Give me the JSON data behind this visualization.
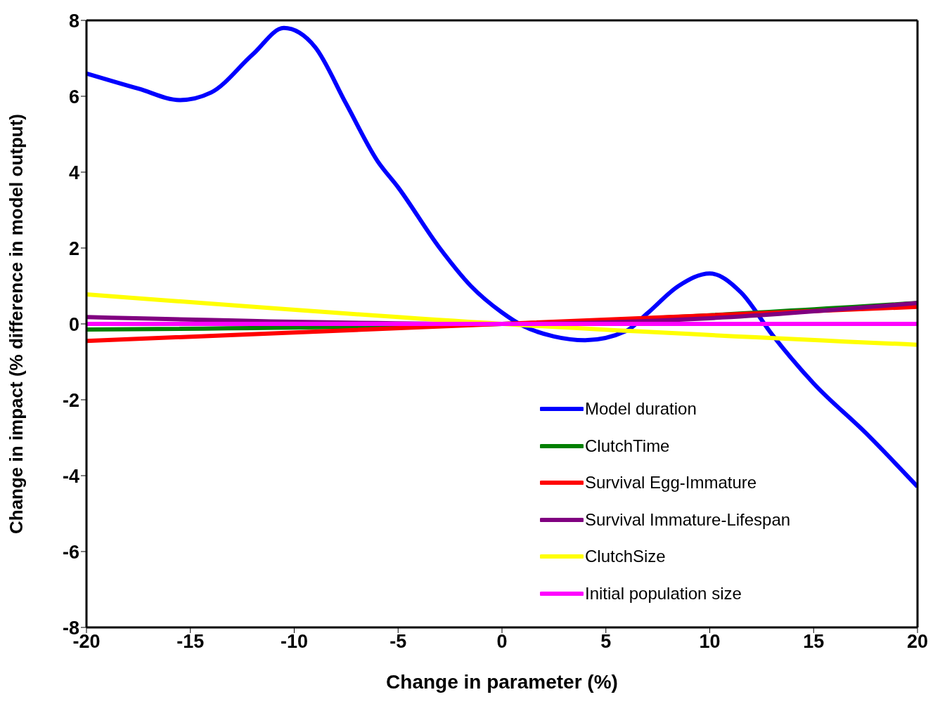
{
  "chart_data": {
    "type": "line",
    "xlabel": "Change in parameter (%)",
    "ylabel": "Change in impact (% difference in model output)",
    "xlim": [
      -20,
      20
    ],
    "xticks": [
      -20,
      -15,
      -10,
      -5,
      0,
      5,
      10,
      15,
      20
    ],
    "ylim": [
      -8,
      8
    ],
    "yticks": [
      -8,
      -6,
      -4,
      -2,
      0,
      2,
      4,
      6,
      8
    ],
    "grid": false,
    "legend": "bottom right",
    "marker": "none",
    "line_style": "solid",
    "series": [
      {
        "name": "Model duration",
        "color": "#0000ff",
        "x": [
          -20,
          -17.5,
          -15.5,
          -14,
          -12,
          -10.5,
          -9,
          -7.5,
          -6,
          -5,
          -3,
          -1.5,
          0,
          1,
          2.5,
          4,
          6,
          7,
          8.5,
          10,
          11.5,
          13,
          15,
          17.5,
          20
        ],
        "values": [
          6.6,
          6.2,
          5.9,
          6.1,
          7.1,
          7.8,
          7.3,
          5.8,
          4.3,
          3.6,
          2.0,
          1.0,
          0.3,
          -0.05,
          -0.33,
          -0.43,
          -0.18,
          0.28,
          1.0,
          1.33,
          0.83,
          -0.28,
          -1.57,
          -2.87,
          -4.29
        ]
      },
      {
        "name": "ClutchTime",
        "color": "#008000",
        "x": [
          -20,
          0,
          20
        ],
        "values": [
          -0.15,
          0,
          0.55
        ]
      },
      {
        "name": "Survival Egg-Immature",
        "color": "#ff0000",
        "x": [
          -20,
          0,
          20
        ],
        "values": [
          -0.45,
          0,
          0.45
        ]
      },
      {
        "name": "Survival Immature-Lifespan",
        "color": "#800080",
        "x": [
          -20,
          0,
          10,
          20
        ],
        "values": [
          0.18,
          0,
          0.15,
          0.55
        ]
      },
      {
        "name": "ClutchSize",
        "color": "#ffff00",
        "x": [
          -20,
          0,
          20
        ],
        "values": [
          0.78,
          0,
          -0.55
        ]
      },
      {
        "name": "Initial population size",
        "color": "#ff00ff",
        "x": [
          -20,
          0,
          20
        ],
        "values": [
          0,
          0,
          0
        ]
      }
    ]
  }
}
